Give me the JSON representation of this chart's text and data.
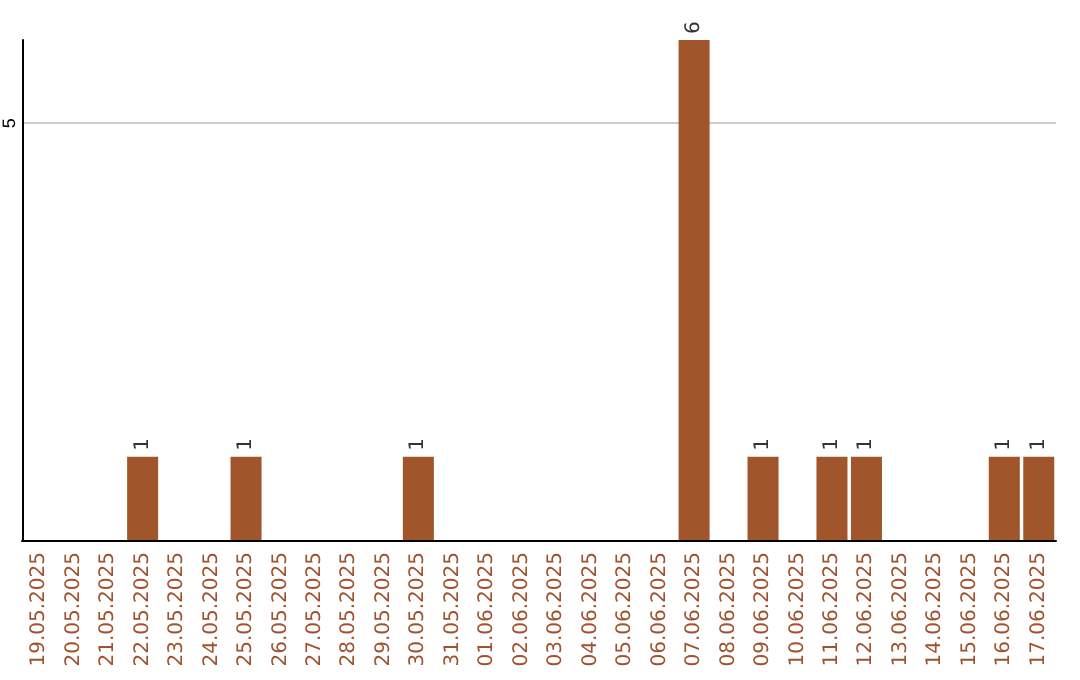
{
  "chart_data": {
    "type": "bar",
    "categories": [
      "19.05.2025",
      "20.05.2025",
      "21.05.2025",
      "22.05.2025",
      "23.05.2025",
      "24.05.2025",
      "25.05.2025",
      "26.05.2025",
      "27.05.2025",
      "28.05.2025",
      "29.05.2025",
      "30.05.2025",
      "31.05.2025",
      "01.06.2025",
      "02.06.2025",
      "03.06.2025",
      "04.06.2025",
      "05.06.2025",
      "06.06.2025",
      "07.06.2025",
      "08.06.2025",
      "09.06.2025",
      "10.06.2025",
      "11.06.2025",
      "12.06.2025",
      "13.06.2025",
      "14.06.2025",
      "15.06.2025",
      "16.06.2025",
      "17.06.2025"
    ],
    "values": [
      0,
      0,
      0,
      1,
      0,
      0,
      1,
      0,
      0,
      0,
      0,
      1,
      0,
      0,
      0,
      0,
      0,
      0,
      0,
      6,
      0,
      1,
      0,
      1,
      1,
      0,
      0,
      0,
      1,
      1
    ],
    "value_labels": [
      null,
      null,
      null,
      "1",
      null,
      null,
      "1",
      null,
      null,
      null,
      null,
      "1",
      null,
      null,
      null,
      null,
      null,
      null,
      null,
      "6",
      null,
      "1",
      null,
      "1",
      "1",
      null,
      null,
      null,
      "1",
      "1"
    ],
    "color": "#a0562a",
    "ylim": [
      0,
      6
    ],
    "yticks": [
      5
    ],
    "grid": "y"
  }
}
